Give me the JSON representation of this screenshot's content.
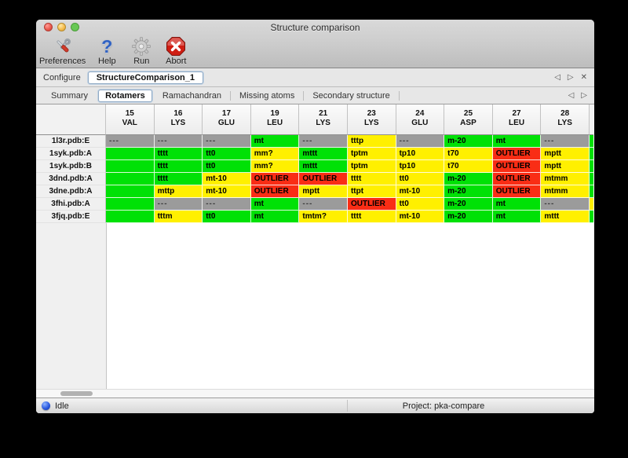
{
  "window": {
    "title": "Structure comparison"
  },
  "toolbar": {
    "items": [
      {
        "label": "Preferences",
        "icon": "preferences-tools-icon"
      },
      {
        "label": "Help",
        "icon": "help-question-icon"
      },
      {
        "label": "Run",
        "icon": "run-gear-icon"
      },
      {
        "label": "Abort",
        "icon": "abort-stop-icon"
      }
    ]
  },
  "configure": {
    "label": "Configure",
    "name": "StructureComparison_1",
    "prev_glyph": "◁",
    "next_glyph": "▷",
    "close_glyph": "✕"
  },
  "tabs": {
    "items": [
      "Summary",
      "Rotamers",
      "Ramachandran",
      "Missing atoms",
      "Secondary structure"
    ],
    "active": "Rotamers",
    "prev_glyph": "◁",
    "next_glyph": "▷"
  },
  "colors": {
    "green": "#00e106",
    "yellow": "#fff000",
    "red": "#f92d15",
    "na": "#9b9b9b"
  },
  "table": {
    "columns": [
      {
        "num": "15",
        "res": "VAL"
      },
      {
        "num": "16",
        "res": "LYS"
      },
      {
        "num": "17",
        "res": "GLU"
      },
      {
        "num": "19",
        "res": "LEU"
      },
      {
        "num": "21",
        "res": "LYS"
      },
      {
        "num": "23",
        "res": "LYS"
      },
      {
        "num": "24",
        "res": "GLU"
      },
      {
        "num": "25",
        "res": "ASP"
      },
      {
        "num": "27",
        "res": "LEU"
      },
      {
        "num": "28",
        "res": "LYS"
      }
    ],
    "rows": [
      {
        "label": "1l3r.pdb:E",
        "cells": [
          {
            "t": "---",
            "s": "na"
          },
          {
            "t": "---",
            "s": "na"
          },
          {
            "t": "---",
            "s": "na"
          },
          {
            "t": "mt",
            "s": "green"
          },
          {
            "t": "---",
            "s": "na"
          },
          {
            "t": "tttp",
            "s": "yellow"
          },
          {
            "t": "---",
            "s": "na"
          },
          {
            "t": "m-20",
            "s": "green"
          },
          {
            "t": "mt",
            "s": "green"
          },
          {
            "t": "---",
            "s": "na"
          }
        ]
      },
      {
        "label": "1syk.pdb:A",
        "cells": [
          {
            "t": "",
            "s": "green"
          },
          {
            "t": "tttt",
            "s": "green"
          },
          {
            "t": "tt0",
            "s": "green"
          },
          {
            "t": "mm?",
            "s": "yellow"
          },
          {
            "t": "mttt",
            "s": "green"
          },
          {
            "t": "tptm",
            "s": "yellow"
          },
          {
            "t": "tp10",
            "s": "yellow"
          },
          {
            "t": "t70",
            "s": "yellow"
          },
          {
            "t": "OUTLIER",
            "s": "red"
          },
          {
            "t": "mptt",
            "s": "yellow"
          }
        ]
      },
      {
        "label": "1syk.pdb:B",
        "cells": [
          {
            "t": "",
            "s": "green"
          },
          {
            "t": "tttt",
            "s": "green"
          },
          {
            "t": "tt0",
            "s": "green"
          },
          {
            "t": "mm?",
            "s": "yellow"
          },
          {
            "t": "mttt",
            "s": "green"
          },
          {
            "t": "tptm",
            "s": "yellow"
          },
          {
            "t": "tp10",
            "s": "yellow"
          },
          {
            "t": "t70",
            "s": "yellow"
          },
          {
            "t": "OUTLIER",
            "s": "red"
          },
          {
            "t": "mptt",
            "s": "yellow"
          }
        ]
      },
      {
        "label": "3dnd.pdb:A",
        "cells": [
          {
            "t": "",
            "s": "green"
          },
          {
            "t": "tttt",
            "s": "green"
          },
          {
            "t": "mt-10",
            "s": "yellow"
          },
          {
            "t": "OUTLIER",
            "s": "red"
          },
          {
            "t": "OUTLIER",
            "s": "red"
          },
          {
            "t": "tttt",
            "s": "yellow"
          },
          {
            "t": "tt0",
            "s": "yellow"
          },
          {
            "t": "m-20",
            "s": "green"
          },
          {
            "t": "OUTLIER",
            "s": "red"
          },
          {
            "t": "mtmm",
            "s": "yellow"
          }
        ]
      },
      {
        "label": "3dne.pdb:A",
        "cells": [
          {
            "t": "",
            "s": "green"
          },
          {
            "t": "mttp",
            "s": "yellow"
          },
          {
            "t": "mt-10",
            "s": "yellow"
          },
          {
            "t": "OUTLIER",
            "s": "red"
          },
          {
            "t": "mptt",
            "s": "yellow"
          },
          {
            "t": "ttpt",
            "s": "yellow"
          },
          {
            "t": "mt-10",
            "s": "yellow"
          },
          {
            "t": "m-20",
            "s": "green"
          },
          {
            "t": "OUTLIER",
            "s": "red"
          },
          {
            "t": "mtmm",
            "s": "yellow"
          }
        ]
      },
      {
        "label": "3fhi.pdb:A",
        "cells": [
          {
            "t": "",
            "s": "green"
          },
          {
            "t": "---",
            "s": "na"
          },
          {
            "t": "---",
            "s": "na"
          },
          {
            "t": "mt",
            "s": "green"
          },
          {
            "t": "---",
            "s": "na"
          },
          {
            "t": "OUTLIER",
            "s": "red"
          },
          {
            "t": "tt0",
            "s": "yellow"
          },
          {
            "t": "m-20",
            "s": "green"
          },
          {
            "t": "mt",
            "s": "green"
          },
          {
            "t": "---",
            "s": "na"
          }
        ]
      },
      {
        "label": "3fjq.pdb:E",
        "cells": [
          {
            "t": "",
            "s": "green"
          },
          {
            "t": "tttm",
            "s": "yellow"
          },
          {
            "t": "tt0",
            "s": "green"
          },
          {
            "t": "mt",
            "s": "green"
          },
          {
            "t": "tmtm?",
            "s": "yellow"
          },
          {
            "t": "tttt",
            "s": "yellow"
          },
          {
            "t": "mt-10",
            "s": "yellow"
          },
          {
            "t": "m-20",
            "s": "green"
          },
          {
            "t": "mt",
            "s": "green"
          },
          {
            "t": "mttt",
            "s": "yellow"
          }
        ]
      }
    ],
    "clipped_column": [
      "green",
      "green",
      "green",
      "green",
      "green",
      "yellow",
      "green"
    ]
  },
  "statusbar": {
    "state": "Idle",
    "project": "Project: pka-compare"
  }
}
